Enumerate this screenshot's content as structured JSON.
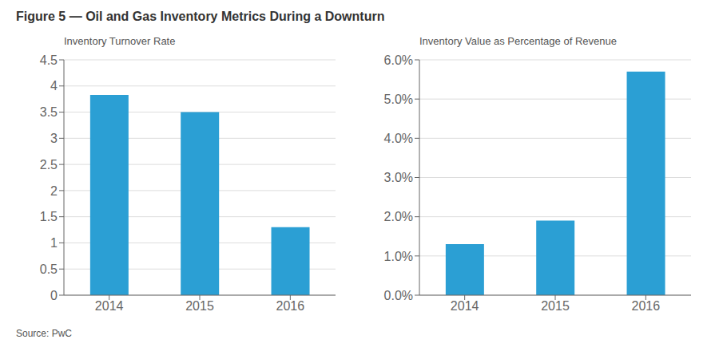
{
  "title": "Figure 5 — Oil and Gas Inventory Metrics During a Downturn",
  "source": "Source: PwC",
  "chart_data": [
    {
      "type": "bar",
      "subtitle": "Inventory Turnover Rate",
      "categories": [
        "2014",
        "2015",
        "2016"
      ],
      "values": [
        3.83,
        3.5,
        1.3
      ],
      "color": "#2b9fd4",
      "ylim": [
        0,
        4.5
      ],
      "yticks": [
        0,
        0.5,
        1,
        1.5,
        2,
        2.5,
        3,
        3.5,
        4,
        4.5
      ],
      "grid": true
    },
    {
      "type": "bar",
      "subtitle": "Inventory Value as Percentage of Revenue",
      "categories": [
        "2014",
        "2015",
        "2016"
      ],
      "values": [
        0.013,
        0.019,
        0.057
      ],
      "color": "#2b9fd4",
      "ylim": [
        0,
        0.06
      ],
      "yticks": [
        {
          "value": 0,
          "label": "0.0%"
        },
        {
          "value": 0.01,
          "label": "1.0%"
        },
        {
          "value": 0.02,
          "label": "2.0%"
        },
        {
          "value": 0.03,
          "label": "3.0%"
        },
        {
          "value": 0.04,
          "label": "4.0%"
        },
        {
          "value": 0.05,
          "label": "5.0%"
        },
        {
          "value": 0.06,
          "label": "6.0%"
        }
      ],
      "grid": true
    }
  ]
}
